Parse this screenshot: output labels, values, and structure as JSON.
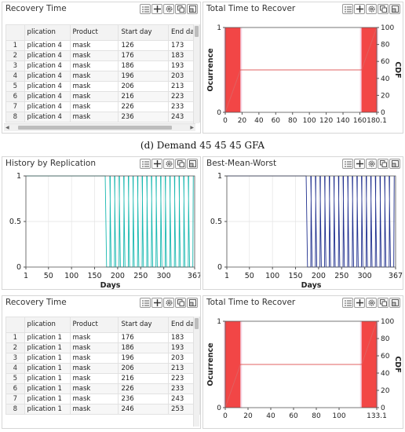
{
  "caption": "(d) Demand 45 45 45 GFA",
  "icons": [
    "list-icon",
    "crosshair-icon",
    "gear-icon",
    "copy-icon",
    "expand-icon"
  ],
  "tables": [
    {
      "title": "Recovery Time",
      "columns": [
        "",
        "plication",
        "Product",
        "Start day",
        "End da"
      ],
      "rows": [
        [
          "1",
          "plication 4",
          "mask",
          "126",
          "173"
        ],
        [
          "2",
          "plication 4",
          "mask",
          "176",
          "183"
        ],
        [
          "3",
          "plication 4",
          "mask",
          "186",
          "193"
        ],
        [
          "4",
          "plication 4",
          "mask",
          "196",
          "203"
        ],
        [
          "5",
          "plication 4",
          "mask",
          "206",
          "213"
        ],
        [
          "6",
          "plication 4",
          "mask",
          "216",
          "223"
        ],
        [
          "7",
          "plication 4",
          "mask",
          "226",
          "233"
        ],
        [
          "8",
          "plication 4",
          "mask",
          "236",
          "243"
        ]
      ]
    },
    {
      "title": "Recovery Time",
      "columns": [
        "",
        "plication",
        "Product",
        "Start day",
        "End da"
      ],
      "rows": [
        [
          "1",
          "plication 1",
          "mask",
          "176",
          "183"
        ],
        [
          "2",
          "plication 1",
          "mask",
          "186",
          "193"
        ],
        [
          "3",
          "plication 1",
          "mask",
          "196",
          "203"
        ],
        [
          "4",
          "plication 1",
          "mask",
          "206",
          "213"
        ],
        [
          "5",
          "plication 1",
          "mask",
          "216",
          "223"
        ],
        [
          "6",
          "plication 1",
          "mask",
          "226",
          "233"
        ],
        [
          "7",
          "plication 1",
          "mask",
          "236",
          "243"
        ],
        [
          "8",
          "plication 1",
          "mask",
          "246",
          "253"
        ]
      ]
    }
  ],
  "chart_data": [
    {
      "title": "Total Time to Recover",
      "type": "bar",
      "ylabel": "Ocurrence",
      "y2label": "CDF",
      "ylim": [
        0,
        1
      ],
      "y2lim": [
        0,
        100
      ],
      "xlim": [
        0,
        180.1
      ],
      "x_ticks": [
        "0",
        "20",
        "40",
        "60",
        "80",
        "100",
        "120",
        "140",
        "160",
        "180.1"
      ],
      "y_ticks": [
        "0",
        "1"
      ],
      "y2_ticks": [
        "0",
        "20",
        "40",
        "60",
        "80",
        "100"
      ],
      "bars": [
        {
          "x0": 0,
          "x1": 18,
          "value": 1
        },
        {
          "x0": 162,
          "x1": 180.1,
          "value": 1
        }
      ],
      "cdf": [
        [
          0,
          0
        ],
        [
          18,
          50
        ],
        [
          162,
          50
        ],
        [
          180.1,
          100
        ]
      ],
      "colors": {
        "bar": "#f24646",
        "cdf": "#e06060",
        "band": "#f2c6dc"
      }
    },
    {
      "title": "Total Time to Recover",
      "type": "bar",
      "ylabel": "Ocurrence",
      "y2label": "CDF",
      "ylim": [
        0,
        1
      ],
      "y2lim": [
        0,
        100
      ],
      "xlim": [
        0,
        133.1
      ],
      "x_ticks": [
        "0",
        "20",
        "40",
        "60",
        "80",
        "100",
        "133.1"
      ],
      "x_tick_values": [
        0,
        20,
        40,
        60,
        80,
        100,
        133.1
      ],
      "y_ticks": [
        "0",
        "1"
      ],
      "y2_ticks": [
        "0",
        "20",
        "40",
        "60",
        "80",
        "100"
      ],
      "bars": [
        {
          "x0": 0,
          "x1": 13.3,
          "value": 1
        },
        {
          "x0": 119.8,
          "x1": 133.1,
          "value": 1
        }
      ],
      "cdf": [
        [
          0,
          0
        ],
        [
          13.3,
          50
        ],
        [
          119.8,
          50
        ],
        [
          133.1,
          100
        ]
      ],
      "colors": {
        "bar": "#f24646",
        "cdf": "#e06060",
        "band": "#f2c6dc"
      }
    },
    {
      "title": "History by Replication",
      "type": "line",
      "xlabel": "Days",
      "xlim": [
        1,
        367
      ],
      "ylim": [
        0,
        1
      ],
      "x_ticks": [
        "1",
        "50",
        "100",
        "150",
        "200",
        "250",
        "300",
        "367"
      ],
      "x_tick_values": [
        1,
        50,
        100,
        150,
        200,
        250,
        300,
        367
      ],
      "y_ticks": [
        "0",
        "0.5",
        "1"
      ],
      "flat_until": 174,
      "pulse_starts": [
        176,
        186,
        196,
        206,
        216,
        226,
        236,
        246,
        256,
        266,
        276,
        286,
        296,
        306,
        316,
        326,
        336,
        346,
        356
      ],
      "pulse_width": 7,
      "color": "#17b8b0"
    },
    {
      "title": "Best-Mean-Worst",
      "type": "line",
      "xlabel": "Days",
      "xlim": [
        1,
        367
      ],
      "ylim": [
        0,
        1
      ],
      "x_ticks": [
        "1",
        "50",
        "100",
        "150",
        "200",
        "250",
        "300",
        "367"
      ],
      "x_tick_values": [
        1,
        50,
        100,
        150,
        200,
        250,
        300,
        367
      ],
      "y_ticks": [
        "0",
        "0.5",
        "1"
      ],
      "flat_until": 174,
      "pulse_starts": [
        176,
        186,
        196,
        206,
        216,
        226,
        236,
        246,
        256,
        266,
        276,
        286,
        296,
        306,
        316,
        326,
        336,
        346,
        356
      ],
      "pulse_width": 7,
      "color": "#1f2f8e"
    }
  ]
}
